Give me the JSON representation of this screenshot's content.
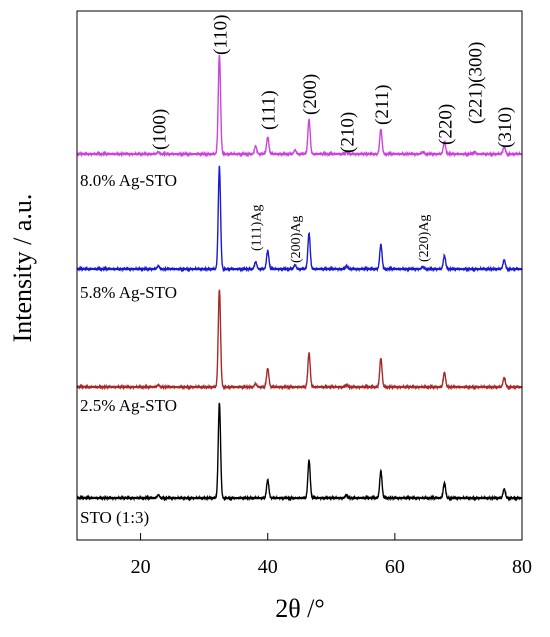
{
  "chart_data": {
    "type": "line",
    "xlabel": "2θ /°",
    "ylabel": "Intensity / a.u.",
    "xlim": [
      10,
      80
    ],
    "x_ticks": [
      "20",
      "40",
      "60",
      "80"
    ],
    "y_axis_values_shown": false,
    "grid": false,
    "legend": "none (series labeled inline)",
    "stacking": "vertical offset, STO at bottom to Ag-STO 8.0% at top",
    "series": [
      {
        "name": "STO (1:3)",
        "color": "#000000",
        "peaks": [
          {
            "x": 22.8,
            "intensity": 0.03
          },
          {
            "x": 32.4,
            "intensity": 0.95
          },
          {
            "x": 40.0,
            "intensity": 0.18
          },
          {
            "x": 46.5,
            "intensity": 0.38
          },
          {
            "x": 52.4,
            "intensity": 0.03
          },
          {
            "x": 57.8,
            "intensity": 0.27
          },
          {
            "x": 67.8,
            "intensity": 0.15
          },
          {
            "x": 77.2,
            "intensity": 0.09
          }
        ]
      },
      {
        "name": "2.5% Ag-STO",
        "color": "#a52a2a",
        "peaks": [
          {
            "x": 22.8,
            "intensity": 0.02
          },
          {
            "x": 32.4,
            "intensity": 0.95
          },
          {
            "x": 38.1,
            "intensity": 0.03
          },
          {
            "x": 40.0,
            "intensity": 0.18
          },
          {
            "x": 46.5,
            "intensity": 0.33
          },
          {
            "x": 52.4,
            "intensity": 0.02
          },
          {
            "x": 57.8,
            "intensity": 0.28
          },
          {
            "x": 67.8,
            "intensity": 0.14
          },
          {
            "x": 77.2,
            "intensity": 0.09
          }
        ]
      },
      {
        "name": "5.8% Ag-STO",
        "color": "#1a1acc",
        "peaks": [
          {
            "x": 22.8,
            "intensity": 0.03
          },
          {
            "x": 32.4,
            "intensity": 1.0
          },
          {
            "x": 38.1,
            "intensity": 0.07
          },
          {
            "x": 40.0,
            "intensity": 0.18
          },
          {
            "x": 44.3,
            "intensity": 0.04
          },
          {
            "x": 46.5,
            "intensity": 0.35
          },
          {
            "x": 52.4,
            "intensity": 0.03
          },
          {
            "x": 57.8,
            "intensity": 0.24
          },
          {
            "x": 64.4,
            "intensity": 0.02
          },
          {
            "x": 67.8,
            "intensity": 0.13
          },
          {
            "x": 77.2,
            "intensity": 0.09
          }
        ]
      },
      {
        "name": "8.0% Ag-STO",
        "color": "#cc44dd",
        "peaks": [
          {
            "x": 22.8,
            "intensity": 0.02
          },
          {
            "x": 32.4,
            "intensity": 1.0
          },
          {
            "x": 38.1,
            "intensity": 0.08
          },
          {
            "x": 40.0,
            "intensity": 0.17
          },
          {
            "x": 44.3,
            "intensity": 0.04
          },
          {
            "x": 46.5,
            "intensity": 0.35
          },
          {
            "x": 52.4,
            "intensity": 0.02
          },
          {
            "x": 57.8,
            "intensity": 0.25
          },
          {
            "x": 64.4,
            "intensity": 0.02
          },
          {
            "x": 67.8,
            "intensity": 0.12
          },
          {
            "x": 72.5,
            "intensity": 0.02
          },
          {
            "x": 77.2,
            "intensity": 0.07
          }
        ]
      }
    ],
    "annotations": {
      "sto_reflections": [
        {
          "label": "(100)",
          "x": 22.8
        },
        {
          "label": "(110)",
          "x": 32.4
        },
        {
          "label": "(111)",
          "x": 40.0
        },
        {
          "label": "(200)",
          "x": 46.5
        },
        {
          "label": "(210)",
          "x": 52.4
        },
        {
          "label": "(211)",
          "x": 57.8
        },
        {
          "label": "(220)",
          "x": 67.8
        },
        {
          "label": "(221)(300)",
          "x": 72.5
        },
        {
          "label": "(310)",
          "x": 77.2
        }
      ],
      "ag_reflections": [
        {
          "label": "(111)Ag",
          "x": 38.1
        },
        {
          "label": "(200)Ag",
          "x": 44.3
        },
        {
          "label": "(220)Ag",
          "x": 64.4
        }
      ]
    }
  }
}
